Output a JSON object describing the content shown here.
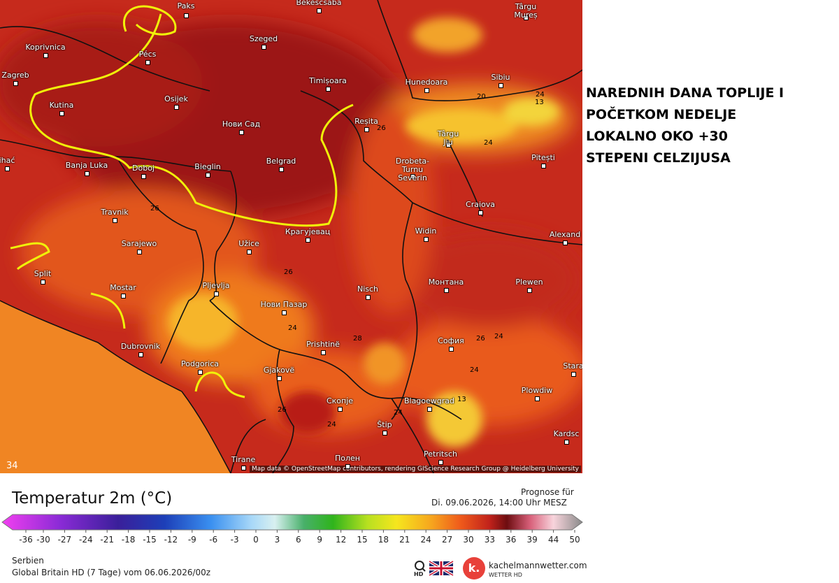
{
  "headline": {
    "lines": [
      "NAREDNIH DANA TOPLIJE I",
      "POČETKOM NEDELJE",
      "LOKALNO OKO +30",
      "STEPENI CELZIJUSA"
    ]
  },
  "map": {
    "cities": [
      "Paks",
      "Békéscsaba",
      "Târgu\nMureș",
      "Koprivnica",
      "Szeged",
      "Pécs",
      "Zagreb",
      "Timișoara",
      "Hunedoara",
      "Sibiu",
      "Osijek",
      "Kutina",
      "Нови Сад",
      "Reșita",
      "Târgu\nJiu",
      "Pitești",
      "Banja Luka",
      "Doboj",
      "Bieglin",
      "Belgrad",
      "Drobeta-\nTurnu\nSeverin",
      "Craiova",
      "Travnik",
      "Sarajewo",
      "Užice",
      "Крагујевац",
      "Widin",
      "Alexand",
      "Split",
      "Mostar",
      "Pljevlja",
      "Nisch",
      "Монтана",
      "Plewen",
      "Нови Пазар",
      "Dubrovnik",
      "Prishtinë",
      "София",
      "Podgorica",
      "Gjakovë",
      "Stara",
      "Plowdiw",
      "Скопје",
      "Blagoewgrad",
      "Štip",
      "Kardsc",
      "Petritsch",
      "Полен",
      "Tirane",
      "ihać"
    ],
    "isolines": [
      "24",
      "13",
      "20",
      "26",
      "24",
      "26",
      "26",
      "24",
      "28",
      "26",
      "24",
      "24",
      "26",
      "24",
      "24",
      "13",
      "34"
    ],
    "attribution": "Map data © OpenStreetMap contributors, rendering GIScience Research Group @ Heidelberg University"
  },
  "legend": {
    "title": "Temperatur 2m (°C)",
    "forecast_label": "Prognose für",
    "forecast_time": "Di. 09.06.2026, 14:00 Uhr MESZ",
    "ticks": [
      -36,
      -30,
      -27,
      -24,
      -21,
      -18,
      -15,
      -12,
      -9,
      -6,
      -3,
      0,
      3,
      6,
      9,
      12,
      15,
      18,
      21,
      24,
      27,
      30,
      33,
      36,
      39,
      44,
      50
    ]
  },
  "footer": {
    "region": "Serbien",
    "model": "Global Britain HD (7 Tage) vom 06.06.2026/00z",
    "search_badge": "HD",
    "brand_logo": "k.",
    "brand": "kachelmannwetter.com",
    "brand_sub": "WETTER HD"
  }
}
